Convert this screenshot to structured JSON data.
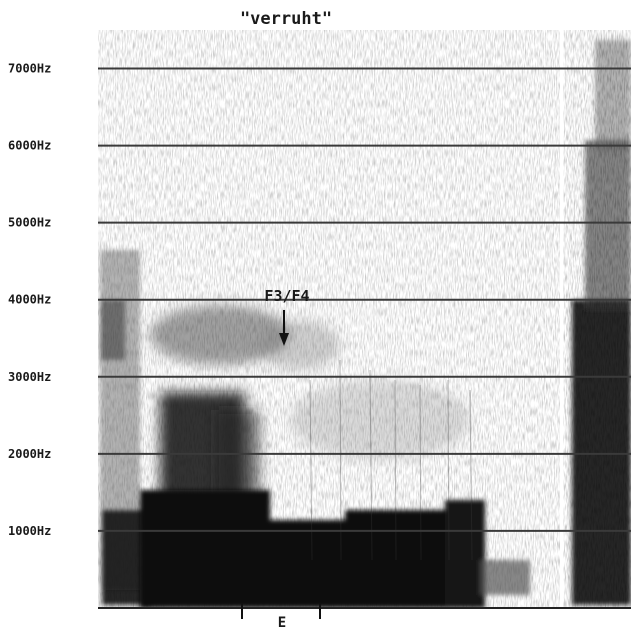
{
  "chart_data": {
    "type": "heatmap",
    "title": "\"verruht\"",
    "ylabel": "",
    "xlabel": "",
    "y_unit": "Hz",
    "ylim": [
      0,
      7500
    ],
    "yticks": [
      {
        "value": 1000,
        "label": "1000Hz"
      },
      {
        "value": 2000,
        "label": "2000Hz"
      },
      {
        "value": 3000,
        "label": "3000Hz"
      },
      {
        "value": 4000,
        "label": "4000Hz"
      },
      {
        "value": 5000,
        "label": "5000Hz"
      },
      {
        "value": 6000,
        "label": "6000Hz"
      },
      {
        "value": 7000,
        "label": "7000Hz"
      }
    ],
    "grid": true,
    "annotation": {
      "text": "F3/F4",
      "points_to_hz": 3400
    },
    "segment_label": "E",
    "colors": {
      "ink": "#111111",
      "grid": "#3a3a3a",
      "paper": "#ffffff"
    }
  }
}
